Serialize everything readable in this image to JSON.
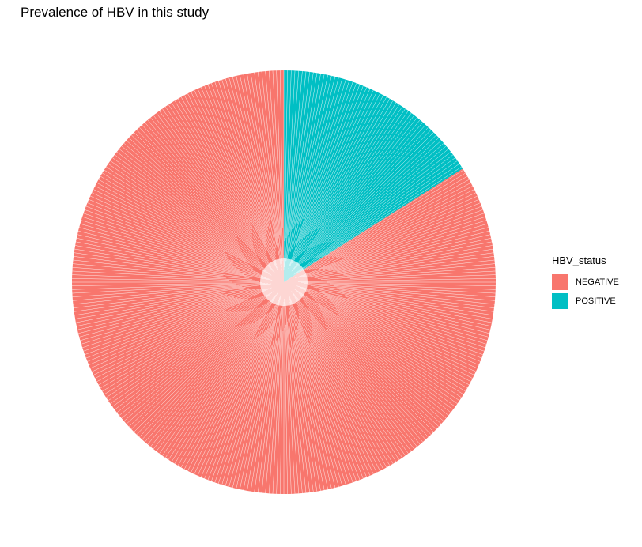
{
  "chart_data": {
    "type": "pie",
    "title": "Prevalence of HBV in this study",
    "legend": {
      "title": "HBV_status",
      "placement": "right",
      "entries": [
        {
          "name": "NEGATIVE",
          "color": "#F8766D"
        },
        {
          "name": "POSITIVE",
          "color": "#00BFC4"
        }
      ]
    },
    "slices": [
      {
        "name": "POSITIVE",
        "fraction": 0.16,
        "color": "#00BFC4"
      },
      {
        "name": "NEGATIVE",
        "fraction": 0.84,
        "color": "#F8766D"
      }
    ],
    "grid": false
  }
}
